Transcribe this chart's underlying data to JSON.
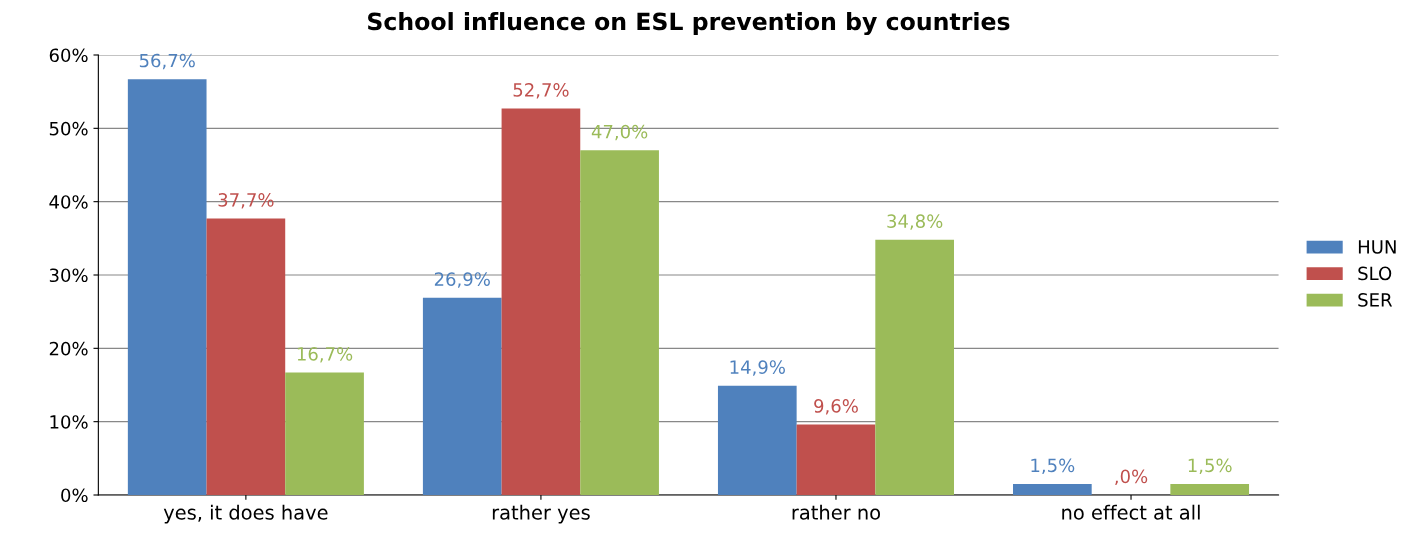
{
  "chart_data": {
    "type": "bar",
    "title": "School influence on ESL prevention by countries",
    "categories": [
      "yes, it does have",
      "rather yes",
      "rather no",
      "no effect at all"
    ],
    "series": [
      {
        "name": "HUN",
        "color": "#4f81bd",
        "values": [
          56.7,
          26.9,
          14.9,
          1.5
        ],
        "value_labels": [
          "56,7%",
          "26,9%",
          "14,9%",
          "1,5%"
        ]
      },
      {
        "name": "SLO",
        "color": "#c0504d",
        "values": [
          37.7,
          52.7,
          9.6,
          0.0
        ],
        "value_labels": [
          "37,7%",
          "52,7%",
          "9,6%",
          ",0%"
        ]
      },
      {
        "name": "SER",
        "color": "#9bbb59",
        "values": [
          16.7,
          47.0,
          34.8,
          1.5
        ],
        "value_labels": [
          "16,7%",
          "47,0%",
          "34,8%",
          "1,5%"
        ]
      }
    ],
    "ylim": [
      0,
      60
    ],
    "yticks": [
      {
        "value": 0,
        "label": "0%"
      },
      {
        "value": 10,
        "label": "10%"
      },
      {
        "value": 20,
        "label": "20%"
      },
      {
        "value": 30,
        "label": "30%"
      },
      {
        "value": 40,
        "label": "40%"
      },
      {
        "value": 50,
        "label": "50%"
      },
      {
        "value": 60,
        "label": "60%"
      }
    ],
    "grid": "y",
    "legend": "right"
  }
}
